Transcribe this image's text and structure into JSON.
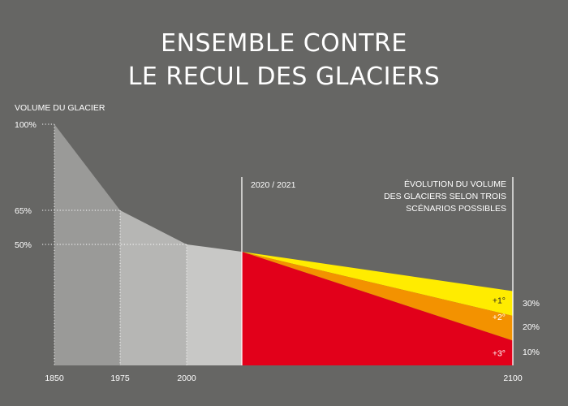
{
  "colors": {
    "background": "#666664",
    "hist_1": "#9a9a98",
    "hist_2": "#b6b6b4",
    "hist_3": "#c8c8c6",
    "hist_4": "#d4d4d2",
    "scenario_1": "#ffec00",
    "scenario_2": "#f39200",
    "scenario_3": "#e2001a"
  },
  "chart_data": {
    "type": "area",
    "title_lines": [
      "ENSEMBLE CONTRE",
      "LE RECUL DES GLACIERS"
    ],
    "ylabel": "VOLUME DU GLACIER",
    "ylim": [
      0,
      100
    ],
    "x_ticks": [
      "1850",
      "1975",
      "2000",
      "2100"
    ],
    "y_ticks": [
      {
        "label": "100%",
        "value": 100
      },
      {
        "label": "65%",
        "value": 65
      },
      {
        "label": "50%",
        "value": 50
      }
    ],
    "historical": [
      {
        "x": 1850,
        "y": 100
      },
      {
        "x": 1975,
        "y": 65
      },
      {
        "x": 2000,
        "y": 50
      },
      {
        "x": 2021,
        "y": 47
      }
    ],
    "marker": {
      "x": 2021,
      "label": "2020 / 2021"
    },
    "scenario_note": [
      "ÉVOLUTION DU VOLUME",
      "DES GLACIERS SELON TROIS",
      "SCÉNARIOS POSSIBLES"
    ],
    "scenarios": [
      {
        "label": "+1°",
        "x": 2100,
        "y": 30,
        "value_label": "30%"
      },
      {
        "label": "+2°",
        "x": 2100,
        "y": 20,
        "value_label": "20%"
      },
      {
        "label": "+3°",
        "x": 2100,
        "y": 10,
        "value_label": "10%"
      }
    ]
  }
}
